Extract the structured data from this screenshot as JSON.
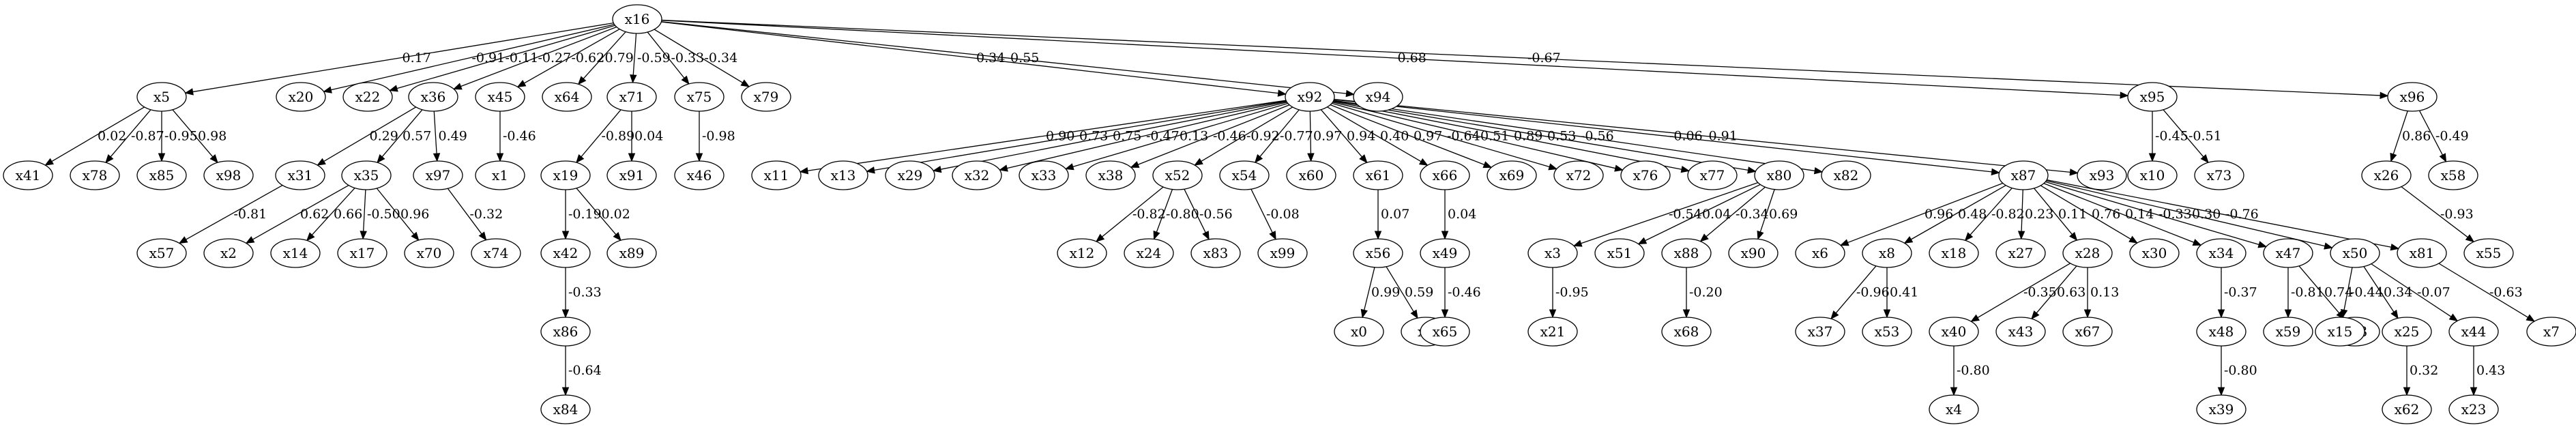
{
  "nodes": [
    "x16",
    "x5",
    "x20",
    "x22",
    "x36",
    "x45",
    "x64",
    "x71",
    "x75",
    "x79",
    "x92",
    "x94",
    "x95",
    "x96",
    "x41",
    "x78",
    "x85",
    "x98",
    "x31",
    "x35",
    "x97",
    "x1",
    "x19",
    "x91",
    "x46",
    "x11",
    "x13",
    "x29",
    "x32",
    "x33",
    "x38",
    "x52",
    "x54",
    "x60",
    "x61",
    "x66",
    "x69",
    "x72",
    "x76",
    "x77",
    "x80",
    "x82",
    "x87",
    "x93",
    "x10",
    "x73",
    "x26",
    "x58",
    "x57",
    "x2",
    "x14",
    "x17",
    "x70",
    "x74",
    "x42",
    "x89",
    "x12",
    "x24",
    "x83",
    "x99",
    "x56",
    "x49",
    "x3",
    "x51",
    "x88",
    "x90",
    "x6",
    "x8",
    "x18",
    "x27",
    "x28",
    "x30",
    "x34",
    "x47",
    "x50",
    "x81",
    "x55",
    "x86",
    "x0",
    "x9",
    "x65",
    "x21",
    "x68",
    "x37",
    "x53",
    "x40",
    "x43",
    "x67",
    "x48",
    "x59",
    "x63",
    "x15",
    "x25",
    "x44",
    "x7",
    "x84",
    "x4",
    "x39",
    "x62",
    "x23"
  ],
  "edges": [
    {
      "from": "x16",
      "to": "x5",
      "label": "0.17"
    },
    {
      "from": "x16",
      "to": "x20",
      "label": "-0.91"
    },
    {
      "from": "x16",
      "to": "x22",
      "label": "-0.11"
    },
    {
      "from": "x16",
      "to": "x36",
      "label": "-0.27"
    },
    {
      "from": "x16",
      "to": "x45",
      "label": "-0.62"
    },
    {
      "from": "x16",
      "to": "x64",
      "label": "0.79"
    },
    {
      "from": "x16",
      "to": "x71",
      "label": "-0.59"
    },
    {
      "from": "x16",
      "to": "x75",
      "label": "-0.33"
    },
    {
      "from": "x16",
      "to": "x79",
      "label": "-0.34"
    },
    {
      "from": "x16",
      "to": "x92",
      "label": "0.34"
    },
    {
      "from": "x16",
      "to": "x94",
      "label": "0.55"
    },
    {
      "from": "x16",
      "to": "x95",
      "label": "0.68"
    },
    {
      "from": "x16",
      "to": "x96",
      "label": "-0.67"
    },
    {
      "from": "x5",
      "to": "x41",
      "label": "0.02"
    },
    {
      "from": "x5",
      "to": "x78",
      "label": "-0.87"
    },
    {
      "from": "x5",
      "to": "x85",
      "label": "-0.95"
    },
    {
      "from": "x5",
      "to": "x98",
      "label": "0.98"
    },
    {
      "from": "x36",
      "to": "x31",
      "label": "0.29"
    },
    {
      "from": "x36",
      "to": "x35",
      "label": "0.57"
    },
    {
      "from": "x36",
      "to": "x97",
      "label": "0.49"
    },
    {
      "from": "x45",
      "to": "x1",
      "label": "-0.46"
    },
    {
      "from": "x71",
      "to": "x19",
      "label": "-0.89"
    },
    {
      "from": "x71",
      "to": "x91",
      "label": "0.04"
    },
    {
      "from": "x75",
      "to": "x46",
      "label": "-0.98"
    },
    {
      "from": "x92",
      "to": "x11",
      "label": "0.90"
    },
    {
      "from": "x92",
      "to": "x13",
      "label": "0.73"
    },
    {
      "from": "x92",
      "to": "x29",
      "label": "0.75"
    },
    {
      "from": "x92",
      "to": "x32",
      "label": "-0.47"
    },
    {
      "from": "x92",
      "to": "x33",
      "label": "0.13"
    },
    {
      "from": "x92",
      "to": "x38",
      "label": "-0.46"
    },
    {
      "from": "x92",
      "to": "x52",
      "label": "-0.92"
    },
    {
      "from": "x92",
      "to": "x54",
      "label": "-0.77"
    },
    {
      "from": "x92",
      "to": "x60",
      "label": "0.97"
    },
    {
      "from": "x92",
      "to": "x61",
      "label": "0.94"
    },
    {
      "from": "x92",
      "to": "x66",
      "label": "0.40"
    },
    {
      "from": "x92",
      "to": "x69",
      "label": "0.97"
    },
    {
      "from": "x92",
      "to": "x72",
      "label": "-0.64"
    },
    {
      "from": "x92",
      "to": "x76",
      "label": "0.51"
    },
    {
      "from": "x92",
      "to": "x77",
      "label": "0.89"
    },
    {
      "from": "x92",
      "to": "x80",
      "label": "0.53"
    },
    {
      "from": "x92",
      "to": "x82",
      "label": "-0.56"
    },
    {
      "from": "x92",
      "to": "x87",
      "label": "-0.06"
    },
    {
      "from": "x92",
      "to": "x93",
      "label": "0.91"
    },
    {
      "from": "x95",
      "to": "x10",
      "label": "-0.45"
    },
    {
      "from": "x95",
      "to": "x73",
      "label": "-0.51"
    },
    {
      "from": "x96",
      "to": "x26",
      "label": "0.86"
    },
    {
      "from": "x96",
      "to": "x58",
      "label": "-0.49"
    },
    {
      "from": "x31",
      "to": "x57",
      "label": "-0.81"
    },
    {
      "from": "x35",
      "to": "x2",
      "label": "0.62"
    },
    {
      "from": "x35",
      "to": "x14",
      "label": "0.66"
    },
    {
      "from": "x35",
      "to": "x17",
      "label": "-0.50"
    },
    {
      "from": "x35",
      "to": "x70",
      "label": "0.96"
    },
    {
      "from": "x97",
      "to": "x74",
      "label": "-0.32"
    },
    {
      "from": "x19",
      "to": "x42",
      "label": "-0.19"
    },
    {
      "from": "x19",
      "to": "x89",
      "label": "0.02"
    },
    {
      "from": "x52",
      "to": "x12",
      "label": "-0.82"
    },
    {
      "from": "x52",
      "to": "x24",
      "label": "-0.80"
    },
    {
      "from": "x52",
      "to": "x83",
      "label": "-0.56"
    },
    {
      "from": "x54",
      "to": "x99",
      "label": "-0.08"
    },
    {
      "from": "x61",
      "to": "x56",
      "label": "0.07"
    },
    {
      "from": "x66",
      "to": "x49",
      "label": "0.04"
    },
    {
      "from": "x80",
      "to": "x3",
      "label": "-0.54"
    },
    {
      "from": "x80",
      "to": "x51",
      "label": "0.04"
    },
    {
      "from": "x80",
      "to": "x88",
      "label": "-0.34"
    },
    {
      "from": "x80",
      "to": "x90",
      "label": "0.69"
    },
    {
      "from": "x87",
      "to": "x6",
      "label": "0.96"
    },
    {
      "from": "x87",
      "to": "x8",
      "label": "0.48"
    },
    {
      "from": "x87",
      "to": "x18",
      "label": "-0.82"
    },
    {
      "from": "x87",
      "to": "x27",
      "label": "0.23"
    },
    {
      "from": "x87",
      "to": "x28",
      "label": "0.11"
    },
    {
      "from": "x87",
      "to": "x30",
      "label": "0.76"
    },
    {
      "from": "x87",
      "to": "x34",
      "label": "0.14"
    },
    {
      "from": "x87",
      "to": "x47",
      "label": "-0.33"
    },
    {
      "from": "x87",
      "to": "x50",
      "label": "0.30"
    },
    {
      "from": "x87",
      "to": "x81",
      "label": "-0.76"
    },
    {
      "from": "x26",
      "to": "x55",
      "label": "-0.93"
    },
    {
      "from": "x42",
      "to": "x86",
      "label": "-0.33"
    },
    {
      "from": "x56",
      "to": "x0",
      "label": "0.99"
    },
    {
      "from": "x56",
      "to": "x9",
      "label": "0.59"
    },
    {
      "from": "x49",
      "to": "x65",
      "label": "-0.46"
    },
    {
      "from": "x3",
      "to": "x21",
      "label": "-0.95"
    },
    {
      "from": "x88",
      "to": "x68",
      "label": "-0.20"
    },
    {
      "from": "x8",
      "to": "x37",
      "label": "-0.96"
    },
    {
      "from": "x8",
      "to": "x53",
      "label": "0.41"
    },
    {
      "from": "x28",
      "to": "x40",
      "label": "-0.35"
    },
    {
      "from": "x28",
      "to": "x43",
      "label": "0.63"
    },
    {
      "from": "x28",
      "to": "x67",
      "label": "0.13"
    },
    {
      "from": "x34",
      "to": "x48",
      "label": "-0.37"
    },
    {
      "from": "x47",
      "to": "x59",
      "label": "-0.81"
    },
    {
      "from": "x47",
      "to": "x63",
      "label": "0.74"
    },
    {
      "from": "x50",
      "to": "x15",
      "label": "-0.44"
    },
    {
      "from": "x50",
      "to": "x25",
      "label": "0.34"
    },
    {
      "from": "x50",
      "to": "x44",
      "label": "-0.07"
    },
    {
      "from": "x81",
      "to": "x7",
      "label": "-0.63"
    },
    {
      "from": "x86",
      "to": "x84",
      "label": "-0.64"
    },
    {
      "from": "x40",
      "to": "x4",
      "label": "-0.80"
    },
    {
      "from": "x48",
      "to": "x39",
      "label": "-0.80"
    },
    {
      "from": "x25",
      "to": "x62",
      "label": "0.32"
    },
    {
      "from": "x44",
      "to": "x23",
      "label": "0.43"
    }
  ]
}
